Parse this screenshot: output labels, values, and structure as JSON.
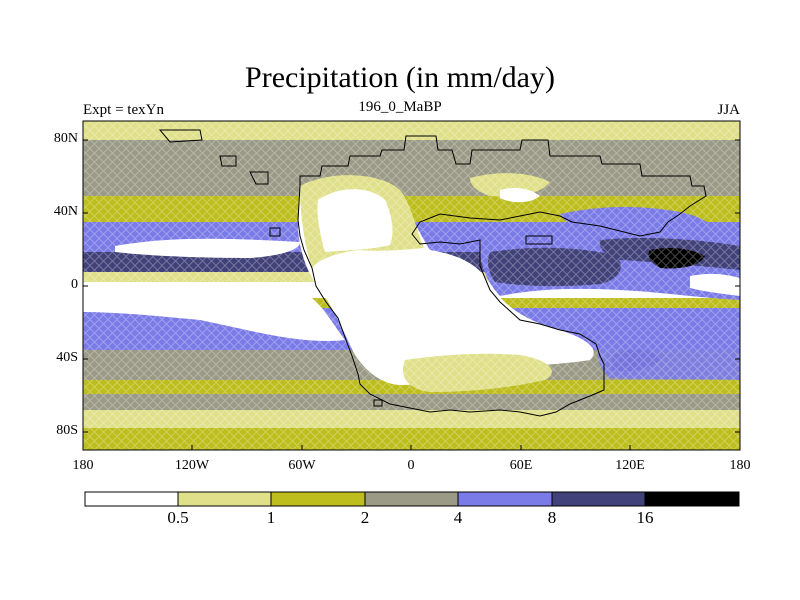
{
  "header": {
    "title": "Precipitation (in mm/day)",
    "left": "Expt = texYn",
    "center": "196_0_MaBP",
    "right": "JJA"
  },
  "axes": {
    "y_ticks": [
      "80N",
      "40N",
      "0",
      "40S",
      "80S"
    ],
    "x_ticks": [
      "180",
      "120W",
      "60W",
      "0",
      "60E",
      "120E",
      "180"
    ]
  },
  "colorbar": {
    "levels": [
      "0.5",
      "1",
      "2",
      "4",
      "8",
      "16"
    ],
    "colors": [
      "#ffffff",
      "#e0e08a",
      "#bdbd1d",
      "#9a9a87",
      "#7b7be8",
      "#42427a",
      "#000000"
    ]
  },
  "palette": {
    "land_outline": "#000000"
  }
}
